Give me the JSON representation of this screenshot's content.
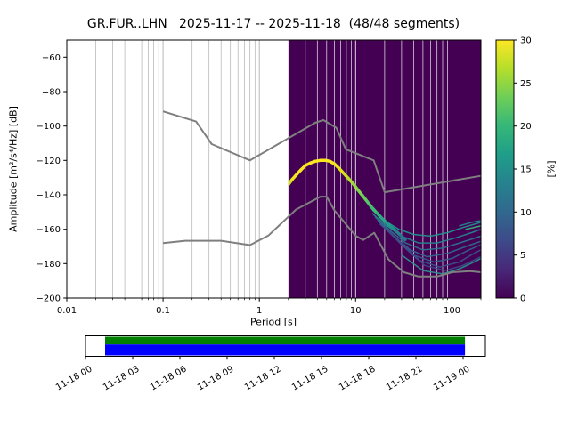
{
  "title": "GR.FUR..LHN   2025-11-17 -- 2025-11-18  (48/48 segments)",
  "axes": {
    "xlabel": "Period [s]",
    "ylabel": "Amplitude [m²/s⁴/Hz] [dB]",
    "x_ticks": [
      0.01,
      0.1,
      1,
      10,
      100
    ],
    "x_tick_labels": [
      "0.01",
      "0.1",
      "1",
      "10",
      "100"
    ],
    "xlim": [
      0.01,
      200
    ],
    "y_ticks": [
      -60,
      -80,
      -100,
      -120,
      -140,
      -160,
      -180,
      -200
    ],
    "ylim": [
      -200,
      -50
    ],
    "grid_color_light": "#b0b0b0",
    "grid_color_dark": "#ffffff"
  },
  "colorbar": {
    "label": "[%]",
    "ticks": [
      0,
      5,
      10,
      15,
      20,
      25,
      30
    ],
    "lim": [
      0,
      30
    ],
    "colors": [
      "#440154",
      "#482878",
      "#3e4a89",
      "#31688e",
      "#26828e",
      "#1f9e89",
      "#35b779",
      "#6ece58",
      "#b5de2b",
      "#fde725"
    ]
  },
  "chart_data": {
    "type": "heatmap",
    "title": "GR.FUR..LHN   2025-11-17 -- 2025-11-18  (48/48 segments)",
    "xlabel": "Period [s]",
    "ylabel": "Amplitude [m²/s⁴/Hz] [dB]",
    "x_scale": "log",
    "xlim": [
      0.01,
      200
    ],
    "ylim": [
      -200,
      -50
    ],
    "prob_lim_percent": [
      0,
      30
    ],
    "data_region": {
      "period_start": 2.0,
      "period_end": 200,
      "background": "#440154"
    },
    "noise_models": {
      "color": "#7f7f7f",
      "nhnm": [
        [
          0.1,
          -91.5
        ],
        [
          0.22,
          -97.4
        ],
        [
          0.32,
          -110.5
        ],
        [
          0.8,
          -120.0
        ],
        [
          3.8,
          -98.1
        ],
        [
          4.6,
          -96.5
        ],
        [
          6.3,
          -101.0
        ],
        [
          7.9,
          -113.5
        ],
        [
          15.4,
          -120.0
        ],
        [
          20.0,
          -138.5
        ],
        [
          200,
          -129.0
        ]
      ],
      "nlnm": [
        [
          0.1,
          -168.1
        ],
        [
          0.17,
          -166.7
        ],
        [
          0.4,
          -166.7
        ],
        [
          0.8,
          -169.2
        ],
        [
          1.24,
          -163.7
        ],
        [
          2.4,
          -148.6
        ],
        [
          4.3,
          -141.1
        ],
        [
          5.0,
          -141.1
        ],
        [
          6.0,
          -149.0
        ],
        [
          10.0,
          -163.8
        ],
        [
          12.0,
          -166.2
        ],
        [
          15.6,
          -162.1
        ],
        [
          21.9,
          -177.5
        ],
        [
          31.6,
          -185.0
        ],
        [
          45.0,
          -187.5
        ],
        [
          70.0,
          -187.5
        ],
        [
          101.0,
          -185.0
        ],
        [
          154.0,
          -184.4
        ],
        [
          200,
          -185.0
        ]
      ]
    },
    "psd_mode": {
      "points": [
        [
          2.0,
          -134,
          "#d8e219"
        ],
        [
          2.2,
          -131,
          "#ece51b"
        ],
        [
          2.45,
          -128,
          "#f6e620"
        ],
        [
          2.7,
          -125.5,
          "#f8e621"
        ],
        [
          3.0,
          -123,
          "#f8e621"
        ],
        [
          3.4,
          -121.5,
          "#f8e621"
        ],
        [
          3.8,
          -120.5,
          "#f8e621"
        ],
        [
          4.3,
          -120,
          "#f8e621"
        ],
        [
          4.9,
          -120,
          "#f8e621"
        ],
        [
          5.4,
          -120.5,
          "#f8e621"
        ],
        [
          6.0,
          -122,
          "#f2e51c"
        ],
        [
          6.7,
          -124.5,
          "#e0e318"
        ],
        [
          7.5,
          -127.5,
          "#cbe11e"
        ],
        [
          8.4,
          -130.5,
          "#b2dd2d"
        ],
        [
          9.4,
          -133.5,
          "#98d83e"
        ],
        [
          10.5,
          -137,
          "#7fd34e"
        ],
        [
          11.8,
          -140.5,
          "#67cc5c"
        ],
        [
          13.2,
          -144,
          "#52c569"
        ],
        [
          14.8,
          -147.5,
          "#40bd72"
        ],
        [
          16.6,
          -150.5,
          "#31b57b"
        ],
        [
          18.6,
          -153.5,
          "#28a886"
        ],
        [
          20.8,
          -156,
          "#239a89"
        ],
        [
          23.3,
          -158.5,
          "#21918c"
        ],
        [
          26.1,
          -161,
          "#25838e"
        ],
        [
          29.2,
          -163.5,
          "#2a768e"
        ],
        [
          32.7,
          -166,
          "#2e6a8e"
        ]
      ]
    },
    "psd_spread": [
      {
        "color": "#21918c",
        "points": [
          [
            15,
            -149
          ],
          [
            20,
            -155
          ],
          [
            28,
            -160
          ],
          [
            40,
            -163
          ],
          [
            60,
            -164
          ],
          [
            90,
            -162
          ],
          [
            130,
            -159
          ],
          [
            200,
            -156
          ]
        ]
      },
      {
        "color": "#26828e",
        "points": [
          [
            15,
            -151
          ],
          [
            21,
            -158
          ],
          [
            30,
            -164
          ],
          [
            45,
            -168
          ],
          [
            70,
            -168
          ],
          [
            110,
            -165
          ],
          [
            160,
            -162
          ],
          [
            200,
            -160
          ]
        ]
      },
      {
        "color": "#2c728e",
        "points": [
          [
            16,
            -153
          ],
          [
            23,
            -161
          ],
          [
            33,
            -168
          ],
          [
            50,
            -172
          ],
          [
            80,
            -171
          ],
          [
            120,
            -168
          ],
          [
            200,
            -164
          ]
        ]
      },
      {
        "color": "#31688e",
        "points": [
          [
            17,
            -155
          ],
          [
            25,
            -164
          ],
          [
            37,
            -172
          ],
          [
            55,
            -176
          ],
          [
            90,
            -174
          ],
          [
            140,
            -170
          ],
          [
            200,
            -167
          ]
        ]
      },
      {
        "color": "#355f8d",
        "points": [
          [
            18,
            -157
          ],
          [
            27,
            -166
          ],
          [
            40,
            -175
          ],
          [
            65,
            -179
          ],
          [
            100,
            -177
          ],
          [
            150,
            -172
          ],
          [
            200,
            -169
          ]
        ]
      },
      {
        "color": "#3b528b",
        "points": [
          [
            20,
            -159
          ],
          [
            30,
            -169
          ],
          [
            45,
            -178
          ],
          [
            75,
            -182
          ],
          [
            120,
            -179
          ],
          [
            170,
            -174
          ],
          [
            200,
            -172
          ]
        ]
      },
      {
        "color": "#3e4989",
        "points": [
          [
            22,
            -161
          ],
          [
            34,
            -171
          ],
          [
            52,
            -181
          ],
          [
            85,
            -184
          ],
          [
            130,
            -181
          ],
          [
            200,
            -176
          ]
        ]
      },
      {
        "color": "#2c918c",
        "points": [
          [
            30,
            -175
          ],
          [
            50,
            -184
          ],
          [
            80,
            -186
          ],
          [
            120,
            -183
          ],
          [
            170,
            -179
          ],
          [
            200,
            -177
          ]
        ]
      },
      {
        "color": "#26828e",
        "points": [
          [
            120,
            -158
          ],
          [
            160,
            -156
          ],
          [
            200,
            -155
          ]
        ]
      },
      {
        "color": "#35b779",
        "points": [
          [
            140,
            -160
          ],
          [
            200,
            -158
          ]
        ]
      }
    ]
  },
  "timeline": {
    "labels": [
      "11-18 00",
      "11-18 03",
      "11-18 06",
      "11-18 09",
      "11-18 12",
      "11-18 15",
      "11-18 18",
      "11-18 21",
      "11-19 00"
    ],
    "coverage_top_color": "#008000",
    "coverage_bottom_color": "#0000ff",
    "coverage_start_frac": 0.049,
    "coverage_end_frac": 0.949
  }
}
